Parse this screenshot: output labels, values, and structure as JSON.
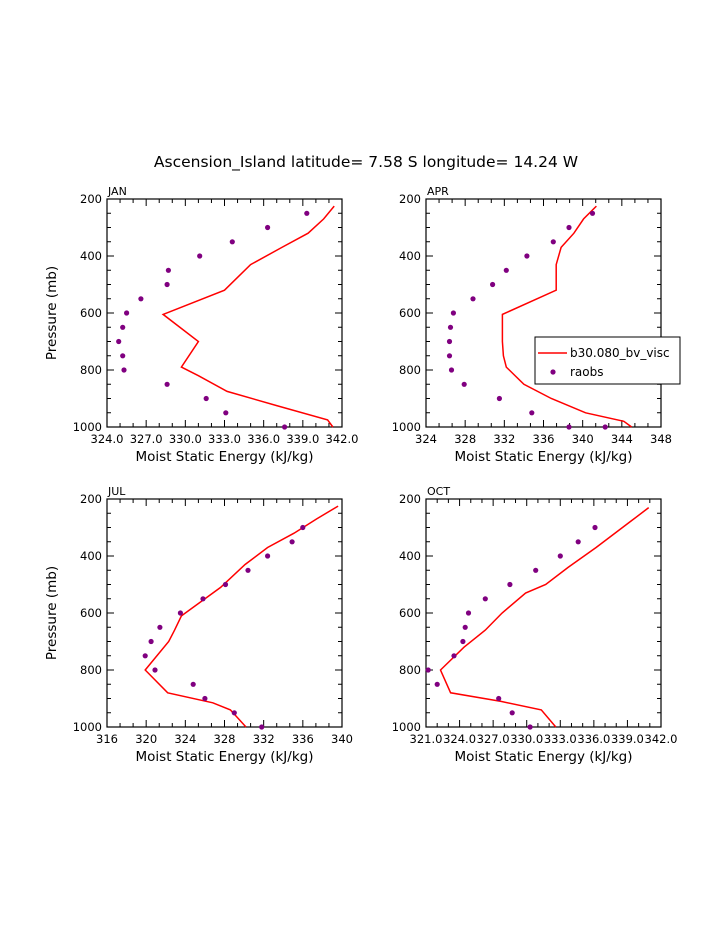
{
  "title": "Ascension_Island  latitude= 7.58 S longitude= 14.24 W",
  "legend": {
    "model_label": "b30.080_bv_visc",
    "obs_label": "raobs",
    "model_color": "#ff0000",
    "obs_color": "#800080"
  },
  "chart_data": [
    {
      "type": "line",
      "panel": "JAN",
      "xlabel": "Moist Static Energy (kJ/kg)",
      "ylabel": "Pressure (mb)",
      "xlim": [
        324,
        342
      ],
      "ylim": [
        1000,
        200
      ],
      "xticks": [
        324,
        327,
        330,
        333,
        336,
        339,
        342
      ],
      "xtick_labels": [
        "324.0",
        "327.0",
        "330.0",
        "333.0",
        "336.0",
        "339.0",
        "342.0"
      ],
      "yticks": [
        200,
        400,
        600,
        800,
        1000
      ],
      "ytick_labels": [
        "200",
        "400",
        "600",
        "800",
        "1000"
      ],
      "series": [
        {
          "name": "b30.080_bv_visc",
          "style": "line",
          "x": [
            341.4,
            340.6,
            339.4,
            337.4,
            335.0,
            333.0,
            328.3,
            331.0,
            329.7,
            331.0,
            333.2,
            337.0,
            340.9,
            341.3
          ],
          "y": [
            225,
            270,
            320,
            370,
            430,
            520,
            605,
            700,
            790,
            820,
            875,
            925,
            975,
            1000
          ]
        },
        {
          "name": "raobs",
          "style": "markers",
          "x": [
            339.3,
            336.3,
            333.6,
            331.1,
            328.7,
            328.6,
            326.6,
            325.5,
            325.2,
            324.9,
            325.2,
            325.3,
            328.6,
            331.6,
            333.1,
            337.6
          ],
          "y": [
            250,
            300,
            350,
            400,
            450,
            500,
            550,
            600,
            650,
            700,
            750,
            800,
            850,
            900,
            950,
            1000
          ]
        }
      ]
    },
    {
      "type": "line",
      "panel": "APR",
      "xlabel": "Moist Static Energy (kJ/kg)",
      "ylabel": "",
      "xlim": [
        324,
        348
      ],
      "ylim": [
        1000,
        200
      ],
      "xticks": [
        324,
        328,
        332,
        336,
        340,
        344,
        348
      ],
      "xtick_labels": [
        "324",
        "328",
        "332",
        "336",
        "340",
        "344",
        "348"
      ],
      "yticks": [
        200,
        400,
        600,
        800,
        1000
      ],
      "ytick_labels": [
        "200",
        "400",
        "600",
        "800",
        "1000"
      ],
      "series": [
        {
          "name": "b30.080_bv_visc",
          "style": "line",
          "x": [
            341.4,
            340.1,
            339.1,
            337.8,
            337.3,
            337.3,
            331.8,
            331.8,
            331.9,
            332.2,
            334.0,
            336.8,
            340.3,
            344.2,
            345.0
          ],
          "y": [
            225,
            270,
            320,
            370,
            430,
            520,
            605,
            700,
            750,
            790,
            850,
            900,
            950,
            980,
            1000
          ]
        },
        {
          "name": "raobs",
          "style": "markers",
          "x": [
            341.0,
            338.6,
            337.0,
            334.3,
            332.2,
            330.8,
            328.8,
            326.8,
            326.5,
            326.4,
            326.4,
            326.6,
            327.9,
            331.5,
            334.8,
            338.6,
            342.3
          ],
          "y": [
            250,
            300,
            350,
            400,
            450,
            500,
            550,
            600,
            650,
            700,
            750,
            800,
            850,
            900,
            950,
            1000,
            1000
          ]
        }
      ]
    },
    {
      "type": "line",
      "panel": "JUL",
      "xlabel": "Moist Static Energy (kJ/kg)",
      "ylabel": "Pressure (mb)",
      "xlim": [
        316,
        340
      ],
      "ylim": [
        1000,
        200
      ],
      "xticks": [
        316,
        320,
        324,
        328,
        332,
        336,
        340
      ],
      "xtick_labels": [
        "316",
        "320",
        "324",
        "328",
        "332",
        "336",
        "340"
      ],
      "yticks": [
        200,
        400,
        600,
        800,
        1000
      ],
      "ytick_labels": [
        "200",
        "400",
        "600",
        "800",
        "1000"
      ],
      "series": [
        {
          "name": "b30.080_bv_visc",
          "style": "line",
          "x": [
            339.6,
            337.4,
            335.1,
            332.4,
            330.1,
            327.6,
            323.6,
            322.9,
            322.3,
            319.9,
            322.2,
            326.8,
            328.6,
            330.2
          ],
          "y": [
            225,
            270,
            320,
            370,
            430,
            510,
            610,
            660,
            700,
            800,
            880,
            915,
            940,
            1000
          ]
        },
        {
          "name": "raobs",
          "style": "markers",
          "x": [
            336.0,
            334.9,
            332.4,
            330.4,
            328.1,
            325.8,
            323.5,
            321.4,
            320.5,
            319.9,
            320.9,
            324.8,
            326.0,
            329.0,
            331.8
          ],
          "y": [
            300,
            350,
            400,
            450,
            500,
            550,
            600,
            650,
            700,
            750,
            800,
            850,
            900,
            950,
            1000
          ]
        }
      ]
    },
    {
      "type": "line",
      "panel": "OCT",
      "xlabel": "Moist Static Energy (kJ/kg)",
      "ylabel": "",
      "xlim": [
        321,
        342
      ],
      "ylim": [
        1000,
        200
      ],
      "xticks": [
        321,
        324,
        327,
        330,
        333,
        336,
        339,
        342
      ],
      "xtick_labels": [
        "321.0",
        "324.0",
        "327.0",
        "330.0",
        "333.0",
        "336.0",
        "339.0",
        "342.0"
      ],
      "yticks": [
        200,
        400,
        600,
        800,
        1000
      ],
      "ytick_labels": [
        "200",
        "400",
        "600",
        "800",
        "1000"
      ],
      "series": [
        {
          "name": "b30.080_bv_visc",
          "style": "line",
          "x": [
            340.9,
            339.4,
            336.2,
            333.7,
            331.7,
            329.9,
            327.8,
            326.3,
            324.4,
            322.3,
            323.2,
            327.7,
            331.3,
            332.6
          ],
          "y": [
            230,
            275,
            370,
            440,
            500,
            530,
            600,
            660,
            720,
            800,
            880,
            910,
            940,
            1000
          ]
        },
        {
          "name": "raobs",
          "style": "markers",
          "x": [
            336.1,
            334.6,
            333.0,
            330.8,
            328.5,
            326.3,
            324.8,
            324.5,
            324.3,
            323.5,
            321.2,
            322.0,
            327.5,
            328.7,
            330.3
          ],
          "y": [
            300,
            350,
            400,
            450,
            500,
            550,
            600,
            650,
            700,
            750,
            800,
            850,
            900,
            950,
            1000
          ]
        }
      ]
    }
  ]
}
